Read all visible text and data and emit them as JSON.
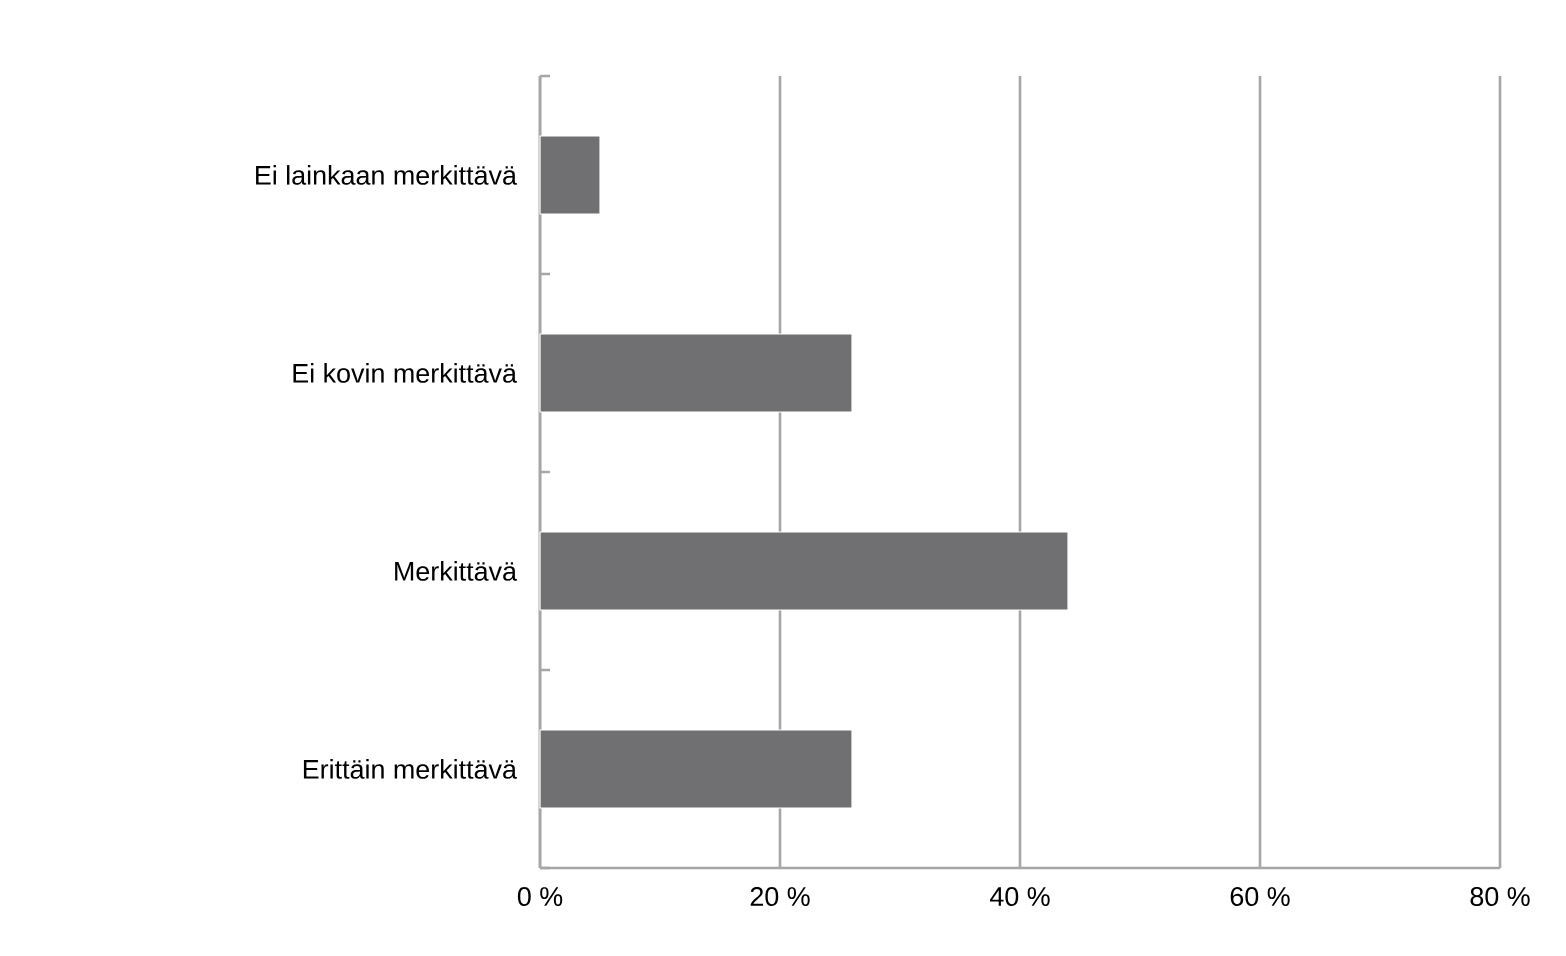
{
  "chart_data": {
    "type": "bar",
    "orientation": "horizontal",
    "categories": [
      "Ei lainkaan merkittävä",
      "Ei kovin merkittävä",
      "Merkittävä",
      "Erittäin merkittävä"
    ],
    "values": [
      5,
      26,
      44,
      26
    ],
    "color": "#707073",
    "xlim": [
      0,
      80
    ],
    "xticks": [
      {
        "value": 0,
        "label": "0 %"
      },
      {
        "value": 20,
        "label": "20 %"
      },
      {
        "value": 40,
        "label": "40 %"
      },
      {
        "value": 60,
        "label": "60 %"
      },
      {
        "value": 80,
        "label": "80 %"
      }
    ],
    "grid": "x"
  }
}
